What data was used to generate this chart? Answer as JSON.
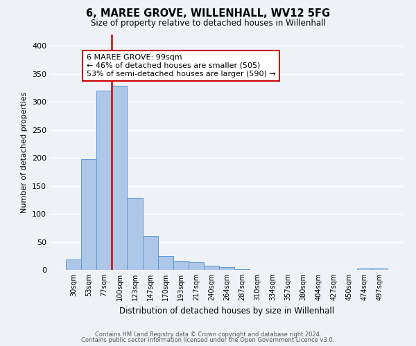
{
  "title": "6, MAREE GROVE, WILLENHALL, WV12 5FG",
  "subtitle": "Size of property relative to detached houses in Willenhall",
  "xlabel": "Distribution of detached houses by size in Willenhall",
  "ylabel": "Number of detached properties",
  "bar_labels": [
    "30sqm",
    "53sqm",
    "77sqm",
    "100sqm",
    "123sqm",
    "147sqm",
    "170sqm",
    "193sqm",
    "217sqm",
    "240sqm",
    "264sqm",
    "287sqm",
    "310sqm",
    "334sqm",
    "357sqm",
    "380sqm",
    "404sqm",
    "427sqm",
    "450sqm",
    "474sqm",
    "497sqm"
  ],
  "bar_values": [
    18,
    198,
    320,
    328,
    128,
    60,
    25,
    16,
    14,
    8,
    5,
    1,
    0,
    0,
    0,
    0,
    0,
    0,
    0,
    3,
    3
  ],
  "bar_color": "#aec6e8",
  "bar_edge_color": "#5b9bd5",
  "vline_x_index": 3,
  "vline_color": "#cc0000",
  "annotation_title": "6 MAREE GROVE: 99sqm",
  "annotation_line1": "← 46% of detached houses are smaller (505)",
  "annotation_line2": "53% of semi-detached houses are larger (590) →",
  "annotation_box_color": "#ffffff",
  "annotation_box_edge": "#cc0000",
  "ylim": [
    0,
    420
  ],
  "yticks": [
    0,
    50,
    100,
    150,
    200,
    250,
    300,
    350,
    400
  ],
  "bg_color": "#eef2f8",
  "plot_bg": "#eef2f8",
  "footer1": "Contains HM Land Registry data © Crown copyright and database right 2024.",
  "footer2": "Contains public sector information licensed under the Open Government Licence v3.0."
}
